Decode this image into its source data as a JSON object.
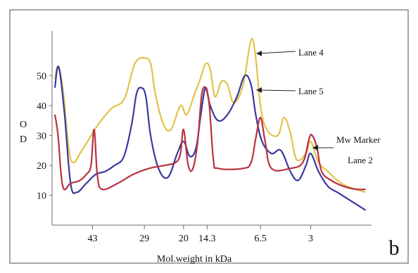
{
  "chart_data": {
    "type": "line",
    "xlabel": "Mol.weight in kDa",
    "ylabel": "O D",
    "ylim": [
      0,
      65
    ],
    "yticks": [
      10,
      20,
      30,
      40,
      50
    ],
    "xticks": [
      {
        "label": "43",
        "pos": 0.12
      },
      {
        "label": "29",
        "pos": 0.285
      },
      {
        "label": "20",
        "pos": 0.41
      },
      {
        "label": "14.3",
        "pos": 0.485
      },
      {
        "label": "6.5",
        "pos": 0.655
      },
      {
        "label": "3",
        "pos": 0.815
      }
    ],
    "grid": false,
    "legend": "inline annotations with arrows",
    "panel_label": "b",
    "annotations": {
      "lane4": "Lane 4",
      "lane5": "Lane 5",
      "marker_line1": "Mw Marker",
      "marker_line2": "Lane 2"
    },
    "series": [
      {
        "name": "Lane 4",
        "color": "#e3c24a",
        "points": [
          [
            0.0,
            49
          ],
          [
            0.01,
            53
          ],
          [
            0.025,
            46
          ],
          [
            0.045,
            25
          ],
          [
            0.06,
            21
          ],
          [
            0.08,
            24
          ],
          [
            0.11,
            29
          ],
          [
            0.14,
            34
          ],
          [
            0.18,
            39
          ],
          [
            0.22,
            42
          ],
          [
            0.245,
            51
          ],
          [
            0.26,
            55
          ],
          [
            0.285,
            56
          ],
          [
            0.305,
            54
          ],
          [
            0.32,
            44
          ],
          [
            0.345,
            34
          ],
          [
            0.37,
            32
          ],
          [
            0.4,
            40
          ],
          [
            0.42,
            37
          ],
          [
            0.445,
            44
          ],
          [
            0.46,
            48
          ],
          [
            0.48,
            54
          ],
          [
            0.495,
            52
          ],
          [
            0.51,
            43
          ],
          [
            0.53,
            48
          ],
          [
            0.55,
            47
          ],
          [
            0.57,
            41
          ],
          [
            0.6,
            47
          ],
          [
            0.625,
            62
          ],
          [
            0.64,
            56
          ],
          [
            0.655,
            40
          ],
          [
            0.675,
            32
          ],
          [
            0.71,
            30
          ],
          [
            0.73,
            36
          ],
          [
            0.75,
            31
          ],
          [
            0.77,
            22
          ],
          [
            0.8,
            24
          ],
          [
            0.815,
            28
          ],
          [
            0.84,
            21
          ],
          [
            0.87,
            18
          ],
          [
            0.9,
            15
          ],
          [
            0.93,
            13
          ],
          [
            0.96,
            12
          ],
          [
            0.99,
            11
          ]
        ]
      },
      {
        "name": "Lane 5",
        "color": "#3a3a9e",
        "points": [
          [
            0.0,
            46
          ],
          [
            0.012,
            53
          ],
          [
            0.03,
            38
          ],
          [
            0.05,
            14
          ],
          [
            0.07,
            11
          ],
          [
            0.1,
            14
          ],
          [
            0.13,
            17
          ],
          [
            0.16,
            18
          ],
          [
            0.19,
            20
          ],
          [
            0.22,
            23
          ],
          [
            0.245,
            34
          ],
          [
            0.26,
            44
          ],
          [
            0.275,
            46
          ],
          [
            0.29,
            43
          ],
          [
            0.305,
            30
          ],
          [
            0.33,
            19
          ],
          [
            0.36,
            16
          ],
          [
            0.39,
            24
          ],
          [
            0.41,
            28
          ],
          [
            0.43,
            23
          ],
          [
            0.45,
            26
          ],
          [
            0.465,
            37
          ],
          [
            0.48,
            46
          ],
          [
            0.495,
            40
          ],
          [
            0.52,
            35
          ],
          [
            0.55,
            37
          ],
          [
            0.58,
            43
          ],
          [
            0.605,
            50
          ],
          [
            0.625,
            47
          ],
          [
            0.64,
            37
          ],
          [
            0.66,
            28
          ],
          [
            0.69,
            24
          ],
          [
            0.72,
            25
          ],
          [
            0.75,
            18
          ],
          [
            0.775,
            15
          ],
          [
            0.8,
            20
          ],
          [
            0.815,
            24
          ],
          [
            0.84,
            18
          ],
          [
            0.87,
            13
          ],
          [
            0.9,
            11
          ],
          [
            0.93,
            9
          ],
          [
            0.96,
            7
          ],
          [
            0.99,
            5
          ]
        ]
      },
      {
        "name": "Mw Marker Lane 2",
        "color": "#b8323e",
        "points": [
          [
            0.0,
            37
          ],
          [
            0.01,
            30
          ],
          [
            0.025,
            13
          ],
          [
            0.05,
            14
          ],
          [
            0.08,
            15
          ],
          [
            0.1,
            17
          ],
          [
            0.115,
            20
          ],
          [
            0.125,
            32
          ],
          [
            0.135,
            17
          ],
          [
            0.15,
            12
          ],
          [
            0.2,
            14
          ],
          [
            0.25,
            17
          ],
          [
            0.3,
            19
          ],
          [
            0.35,
            20
          ],
          [
            0.385,
            21
          ],
          [
            0.4,
            24
          ],
          [
            0.41,
            32
          ],
          [
            0.425,
            20
          ],
          [
            0.44,
            19
          ],
          [
            0.455,
            28
          ],
          [
            0.47,
            45
          ],
          [
            0.49,
            42
          ],
          [
            0.505,
            22
          ],
          [
            0.52,
            19
          ],
          [
            0.6,
            19
          ],
          [
            0.625,
            21
          ],
          [
            0.64,
            29
          ],
          [
            0.655,
            36
          ],
          [
            0.67,
            28
          ],
          [
            0.69,
            19
          ],
          [
            0.75,
            19
          ],
          [
            0.79,
            21
          ],
          [
            0.81,
            29
          ],
          [
            0.82,
            30
          ],
          [
            0.835,
            26
          ],
          [
            0.85,
            18
          ],
          [
            0.88,
            15
          ],
          [
            0.92,
            13
          ],
          [
            0.96,
            12
          ],
          [
            0.99,
            12
          ]
        ]
      }
    ]
  }
}
